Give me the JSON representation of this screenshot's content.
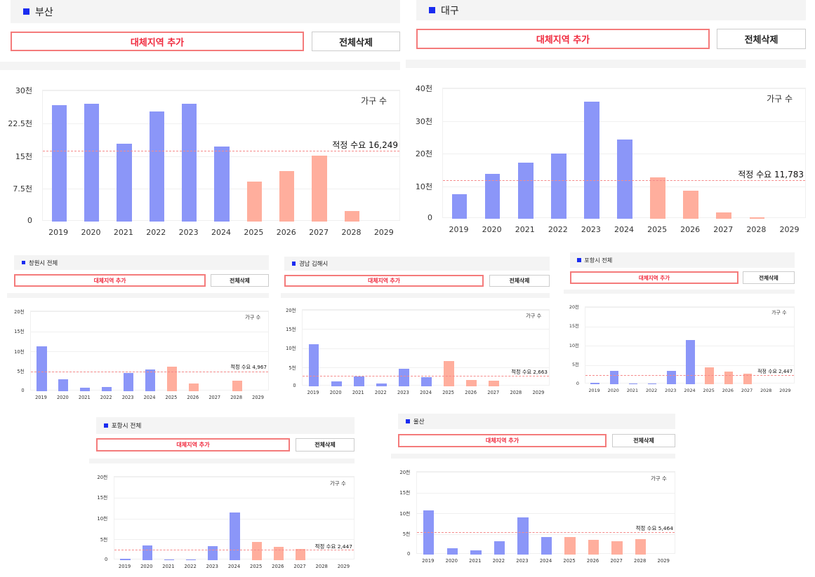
{
  "common": {
    "add_button": "대체지역 추가",
    "delete_button": "전체삭제",
    "legend": "가구 수",
    "threshold_prefix": "적정 수요",
    "forecast_from": 2025,
    "colors": {
      "actual": "#8b96f8",
      "forecast": "#ffae9d",
      "threshold": "#f58a8a",
      "marker": "#1a2cf0"
    }
  },
  "panels": [
    {
      "title": "부산",
      "threshold_label": "적정 수요 16,249",
      "chart_data": {
        "type": "bar",
        "categories": [
          "2019",
          "2020",
          "2021",
          "2022",
          "2023",
          "2024",
          "2025",
          "2026",
          "2027",
          "2028",
          "2029"
        ],
        "values": [
          26700,
          27000,
          17800,
          25200,
          27000,
          17200,
          9200,
          11500,
          15100,
          2400,
          0
        ],
        "threshold": 16249,
        "yticks": [
          "0",
          "7.5천",
          "15천",
          "22.5천",
          "30천"
        ],
        "ylim": [
          0,
          30000
        ],
        "legend": "가구 수"
      }
    },
    {
      "title": "대구",
      "threshold_label": "적정 수요 11,783",
      "chart_data": {
        "type": "bar",
        "categories": [
          "2019",
          "2020",
          "2021",
          "2022",
          "2023",
          "2024",
          "2025",
          "2026",
          "2027",
          "2028",
          "2029"
        ],
        "values": [
          7600,
          13800,
          17300,
          20100,
          35900,
          24200,
          12700,
          8500,
          1900,
          500,
          0
        ],
        "threshold": 11783,
        "yticks": [
          "0",
          "10천",
          "20천",
          "30천",
          "40천"
        ],
        "ylim": [
          0,
          40000
        ],
        "legend": "가구 수"
      }
    },
    {
      "title": "창원시 전체",
      "threshold_label": "적정 수요 4,967",
      "chart_data": {
        "type": "bar",
        "categories": [
          "2019",
          "2020",
          "2021",
          "2022",
          "2023",
          "2024",
          "2025",
          "2026",
          "2027",
          "2028",
          "2029"
        ],
        "values": [
          11200,
          3000,
          900,
          1100,
          4500,
          5400,
          6200,
          2000,
          0,
          2700,
          0
        ],
        "threshold": 4967,
        "yticks": [
          "0",
          "5천",
          "10천",
          "15천",
          "20천"
        ],
        "ylim": [
          0,
          20000
        ],
        "legend": "가구 수"
      }
    },
    {
      "title": "경남 김해시",
      "threshold_label": "적정 수요 2,663",
      "chart_data": {
        "type": "bar",
        "categories": [
          "2019",
          "2020",
          "2021",
          "2022",
          "2023",
          "2024",
          "2025",
          "2026",
          "2027",
          "2028",
          "2029"
        ],
        "values": [
          11000,
          1200,
          2600,
          800,
          4600,
          2400,
          6600,
          1600,
          1400,
          0,
          0
        ],
        "threshold": 2663,
        "yticks": [
          "0",
          "5천",
          "10천",
          "15천",
          "20천"
        ],
        "ylim": [
          0,
          20000
        ],
        "legend": "가구 수"
      }
    },
    {
      "title": "포항시 전체",
      "threshold_label": "적정 수요 2,447",
      "chart_data": {
        "type": "bar",
        "categories": [
          "2019",
          "2020",
          "2021",
          "2022",
          "2023",
          "2024",
          "2025",
          "2026",
          "2027",
          "2028",
          "2029"
        ],
        "values": [
          400,
          3500,
          150,
          150,
          3400,
          11400,
          4300,
          3200,
          2700,
          0,
          0
        ],
        "threshold": 2447,
        "yticks": [
          "0",
          "5천",
          "10천",
          "15천",
          "20천"
        ],
        "ylim": [
          0,
          20000
        ],
        "legend": "가구 수"
      }
    },
    {
      "title": "포항시 전체",
      "threshold_label": "적정 수요 2,447",
      "chart_data": {
        "type": "bar",
        "categories": [
          "2019",
          "2020",
          "2021",
          "2022",
          "2023",
          "2024",
          "2025",
          "2026",
          "2027",
          "2028",
          "2029"
        ],
        "values": [
          400,
          3500,
          150,
          150,
          3400,
          11400,
          4300,
          3200,
          2700,
          0,
          0
        ],
        "threshold": 2447,
        "yticks": [
          "0",
          "5천",
          "10천",
          "15천",
          "20천"
        ],
        "ylim": [
          0,
          20000
        ],
        "legend": "가구 수"
      }
    },
    {
      "title": "울산",
      "threshold_label": "적정 수요 5,464",
      "chart_data": {
        "type": "bar",
        "categories": [
          "2019",
          "2020",
          "2021",
          "2022",
          "2023",
          "2024",
          "2025",
          "2026",
          "2027",
          "2028",
          "2029"
        ],
        "values": [
          10600,
          1600,
          1100,
          3300,
          8900,
          4200,
          4200,
          3600,
          3200,
          3700,
          0
        ],
        "threshold": 5464,
        "yticks": [
          "0",
          "5천",
          "10천",
          "15천",
          "20천"
        ],
        "ylim": [
          0,
          20000
        ],
        "legend": "가구 수"
      }
    }
  ]
}
